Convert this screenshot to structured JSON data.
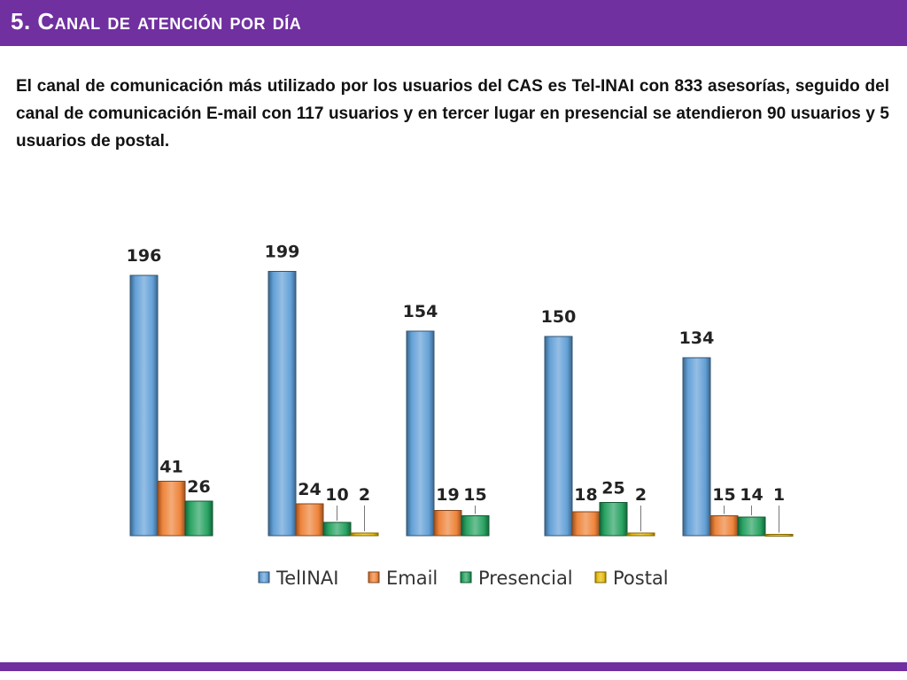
{
  "header": {
    "title": "5. Canal de atención por día"
  },
  "description": "El canal de comunicación más utilizado por los usuarios del CAS es Tel-INAI con 833 asesorías, seguido del canal de comunicación E-mail con 117 usuarios y en tercer lugar en presencial se atendieron 90 usuarios y 5 usuarios de postal.",
  "colors": {
    "accent": "#7030a0",
    "telinai": "#5b9bd5",
    "email": "#ed7d31",
    "presencial": "#1e9e5a",
    "postal": "#e6b800"
  },
  "chart_data": {
    "type": "bar",
    "categories": [
      "",
      "",
      "",
      "",
      ""
    ],
    "series": [
      {
        "name": "TelINAI",
        "values": [
          196,
          199,
          154,
          150,
          134
        ],
        "color": "#5b9bd5"
      },
      {
        "name": "Email",
        "values": [
          41,
          24,
          19,
          18,
          15
        ],
        "color": "#ed7d31"
      },
      {
        "name": "Presencial",
        "values": [
          26,
          10,
          15,
          25,
          14
        ],
        "color": "#1e9e5a"
      },
      {
        "name": "Postal",
        "values": [
          0,
          2,
          0,
          2,
          1
        ],
        "color": "#e6b800"
      }
    ],
    "data_labels": [
      [
        "196",
        "41",
        "26",
        null
      ],
      [
        "199",
        "24",
        "10",
        "2"
      ],
      [
        "154",
        "19",
        "15",
        null
      ],
      [
        "150",
        "18",
        "25",
        "2"
      ],
      [
        "134",
        "15",
        "14",
        "1"
      ]
    ],
    "title": "",
    "xlabel": "",
    "ylabel": "",
    "grid": false,
    "legend": {
      "position": "bottom",
      "entries": [
        "TelINAI",
        "Email",
        "Presencial",
        "Postal"
      ]
    }
  }
}
